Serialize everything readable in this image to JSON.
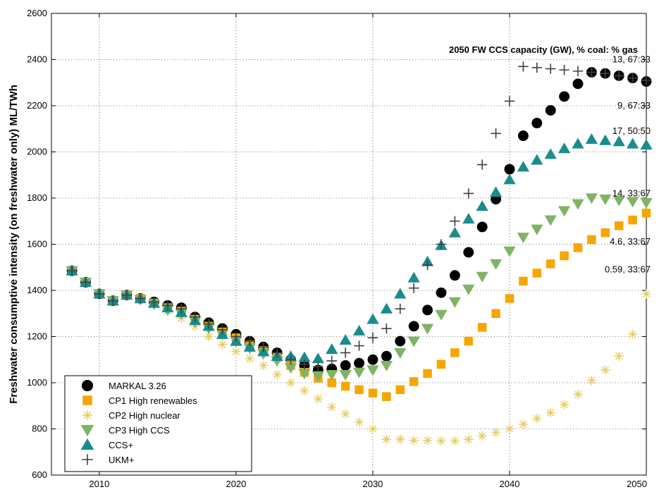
{
  "chart_data": {
    "type": "scatter",
    "title": "",
    "xlabel": "",
    "ylabel": "Freshwater consumptive intensity (on freshwater only) ML/TWh",
    "xlim": [
      2006.5,
      2050
    ],
    "ylim": [
      600,
      2600
    ],
    "xticks": [
      "2010",
      "2020",
      "2030",
      "2040",
      "2050"
    ],
    "yticks": [
      "600",
      "800",
      "1000",
      "1200",
      "1400",
      "1600",
      "1800",
      "2000",
      "2200",
      "2400",
      "2600"
    ],
    "grid": true,
    "legend_position": "bottom-left",
    "annotation_title": "2050 FW CCS capacity (GW), % coal: % gas",
    "annotations": [
      {
        "text": "13, 67:33",
        "x": 2050,
        "y": 2400
      },
      {
        "text": "9, 67:33",
        "x": 2050,
        "y": 2200
      },
      {
        "text": "17, 50:50",
        "x": 2050,
        "y": 2090
      },
      {
        "text": "14, 33:67",
        "x": 2050,
        "y": 1820
      },
      {
        "text": "4.6, 33:67",
        "x": 2050,
        "y": 1610
      },
      {
        "text": "0.59, 33:67",
        "x": 2050,
        "y": 1490
      }
    ],
    "x": [
      2008,
      2009,
      2010,
      2011,
      2012,
      2013,
      2014,
      2015,
      2016,
      2017,
      2018,
      2019,
      2020,
      2021,
      2022,
      2023,
      2024,
      2025,
      2026,
      2027,
      2028,
      2029,
      2030,
      2031,
      2032,
      2033,
      2034,
      2035,
      2036,
      2037,
      2038,
      2039,
      2040,
      2041,
      2042,
      2043,
      2044,
      2045,
      2046,
      2047,
      2048,
      2049,
      2050
    ],
    "series": [
      {
        "name": "MARKAL 3.26",
        "marker": "circle",
        "color": "#000000",
        "values": [
          1485,
          1435,
          1385,
          1355,
          1380,
          1365,
          1350,
          1335,
          1325,
          1285,
          1260,
          1235,
          1210,
          1180,
          1155,
          1130,
          1100,
          1075,
          1055,
          1060,
          1075,
          1085,
          1100,
          1115,
          1180,
          1245,
          1315,
          1390,
          1465,
          1565,
          1675,
          1795,
          1925,
          2070,
          2125,
          2180,
          2240,
          2295,
          2345,
          2340,
          2330,
          2320,
          2305
        ]
      },
      {
        "name": "CP1 High renewables",
        "marker": "square",
        "color": "#f7a600",
        "values": [
          1485,
          1435,
          1385,
          1355,
          1380,
          1365,
          1345,
          1325,
          1310,
          1275,
          1245,
          1220,
          1195,
          1165,
          1140,
          1110,
          1075,
          1045,
          1020,
          1000,
          985,
          970,
          955,
          940,
          970,
          1005,
          1040,
          1080,
          1130,
          1180,
          1240,
          1300,
          1365,
          1440,
          1475,
          1515,
          1550,
          1585,
          1620,
          1650,
          1680,
          1705,
          1735
        ]
      },
      {
        "name": "CP2 High nuclear",
        "marker": "asterisk",
        "color": "#e6cc66",
        "values": [
          1485,
          1435,
          1385,
          1355,
          1380,
          1360,
          1340,
          1310,
          1280,
          1245,
          1200,
          1165,
          1135,
          1105,
          1075,
          1035,
          1000,
          965,
          930,
          895,
          865,
          830,
          800,
          755,
          755,
          750,
          750,
          748,
          748,
          755,
          770,
          785,
          800,
          820,
          845,
          870,
          905,
          950,
          1010,
          1055,
          1115,
          1210,
          1385
        ]
      },
      {
        "name": "CP3 High CCS",
        "marker": "triangle-down",
        "color": "#80b366",
        "values": [
          1485,
          1435,
          1385,
          1355,
          1380,
          1360,
          1340,
          1315,
          1300,
          1265,
          1235,
          1210,
          1180,
          1150,
          1125,
          1095,
          1065,
          1040,
          1030,
          1035,
          1035,
          1045,
          1055,
          1075,
          1130,
          1180,
          1235,
          1295,
          1350,
          1405,
          1460,
          1515,
          1570,
          1630,
          1665,
          1705,
          1745,
          1775,
          1800,
          1795,
          1790,
          1785,
          1780
        ]
      },
      {
        "name": "CCS+",
        "marker": "triangle-up",
        "color": "#1a8c8c",
        "values": [
          1485,
          1435,
          1385,
          1355,
          1380,
          1365,
          1345,
          1325,
          1305,
          1270,
          1245,
          1210,
          1180,
          1155,
          1135,
          1115,
          1115,
          1110,
          1105,
          1145,
          1185,
          1225,
          1275,
          1320,
          1385,
          1455,
          1525,
          1595,
          1650,
          1710,
          1765,
          1825,
          1880,
          1935,
          1965,
          1990,
          2015,
          2035,
          2055,
          2050,
          2045,
          2035,
          2030
        ]
      },
      {
        "name": "UKM+",
        "marker": "plus",
        "color": "#404040",
        "values": [
          1485,
          1435,
          1385,
          1355,
          1380,
          1365,
          1350,
          1335,
          1320,
          1285,
          1255,
          1230,
          1200,
          1180,
          1155,
          1130,
          1100,
          1080,
          1070,
          1095,
          1130,
          1160,
          1195,
          1235,
          1320,
          1410,
          1510,
          1600,
          1700,
          1820,
          1945,
          2080,
          2220,
          2370,
          2365,
          2360,
          2355,
          2350,
          2345,
          2340,
          2330,
          2320,
          2310
        ]
      }
    ]
  }
}
